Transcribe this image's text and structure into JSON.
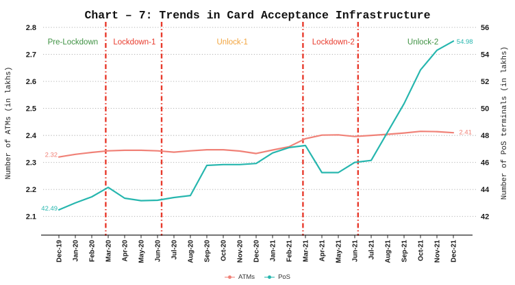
{
  "title": "Chart – 7: Trends in Card Acceptance Infrastructure",
  "chart_data": {
    "type": "line",
    "x_labels": [
      "Dec-19",
      "Jan-20",
      "Feb-20",
      "Mar-20",
      "Apr-20",
      "May-20",
      "Jun-20",
      "Jul-20",
      "Aug-20",
      "Sep-20",
      "Oct-20",
      "Nov-20",
      "Dec-20",
      "Jan-21",
      "Feb-21",
      "Mar-21",
      "Apr-21",
      "May-21",
      "Jun-21",
      "Jul-21",
      "Aug-21",
      "Sep-21",
      "Oct-21",
      "Nov-21",
      "Dec-21"
    ],
    "series": [
      {
        "name": "ATMs",
        "axis": "left",
        "color": "#f08177",
        "values": [
          2.32,
          2.33,
          2.337,
          2.343,
          2.345,
          2.345,
          2.343,
          2.338,
          2.343,
          2.347,
          2.347,
          2.342,
          2.333,
          2.346,
          2.358,
          2.388,
          2.401,
          2.402,
          2.396,
          2.4,
          2.404,
          2.409,
          2.415,
          2.414,
          2.41
        ]
      },
      {
        "name": "PoS",
        "axis": "right",
        "color": "#26b6ae",
        "values": [
          42.49,
          43.0,
          43.45,
          44.15,
          43.35,
          43.17,
          43.2,
          43.4,
          43.55,
          45.78,
          45.84,
          45.84,
          45.92,
          46.7,
          47.1,
          47.25,
          45.25,
          45.25,
          46.0,
          46.15,
          48.25,
          50.35,
          52.85,
          54.3,
          54.98
        ]
      }
    ],
    "axes": {
      "left": {
        "label": "Number of ATMs (in lakhs)",
        "min": 2.1,
        "max": 2.8,
        "step": 0.1,
        "ticks": [
          "2.1",
          "2.2",
          "2.3",
          "2.4",
          "2.5",
          "2.6",
          "2.7",
          "2.8"
        ]
      },
      "right": {
        "label": "Number of PoS terminals (in lakhs)",
        "min": 42,
        "max": 56,
        "step": 2,
        "ticks": [
          "42",
          "44",
          "46",
          "48",
          "50",
          "52",
          "54",
          "56"
        ]
      }
    },
    "grid": {
      "on": true,
      "style": "dotted",
      "color": "#a6a6a6"
    },
    "dividers": {
      "color": "#e8392b",
      "positions": [
        2.85,
        6.25,
        14.85,
        18.2
      ]
    },
    "periods": [
      {
        "label": "Pre-Lockdown",
        "color": "#3e9142",
        "x": 0.85
      },
      {
        "label": "Lockdown-1",
        "color": "#e8392b",
        "x": 4.6
      },
      {
        "label": "Unlock-1",
        "color": "#f2a33c",
        "x": 10.55
      },
      {
        "label": "Lockdown-2",
        "color": "#e8392b",
        "x": 16.7
      },
      {
        "label": "Unlock-2",
        "color": "#3e9142",
        "x": 22.15
      }
    ],
    "annotations": [
      {
        "text": "2.32",
        "series": 0,
        "x": -0.08,
        "value": 2.328,
        "anchor": "end"
      },
      {
        "text": "42.49",
        "series": 1,
        "x": -0.08,
        "value": 42.6,
        "anchor": "end"
      },
      {
        "text": "2.41",
        "series": 0,
        "x": 24.35,
        "value": 2.412,
        "anchor": "start"
      },
      {
        "text": "54.98",
        "series": 1,
        "x": 24.2,
        "value": 54.95,
        "anchor": "start"
      }
    ],
    "legend_position": "bottom"
  }
}
